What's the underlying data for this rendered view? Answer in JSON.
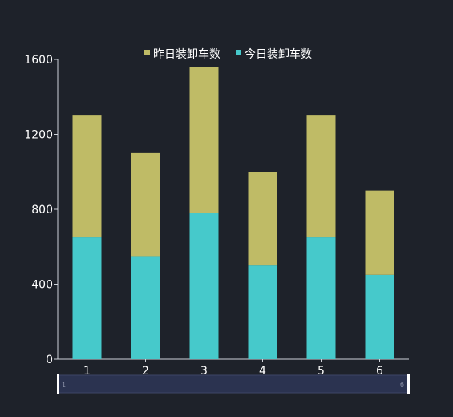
{
  "chart_data": {
    "type": "bar",
    "stacked": true,
    "categories": [
      "1",
      "2",
      "3",
      "4",
      "5",
      "6"
    ],
    "series": [
      {
        "name": "今日装卸车数",
        "color": "#46c9cb",
        "values": [
          650,
          550,
          780,
          500,
          650,
          450
        ]
      },
      {
        "name": "昨日装卸车数",
        "color": "#bfbb66",
        "values": [
          650,
          550,
          780,
          500,
          650,
          450
        ]
      }
    ],
    "ylim": [
      0,
      1600
    ],
    "yticks": [
      0,
      400,
      800,
      1200,
      1600
    ],
    "grid": false,
    "legend": {
      "position": "top-center",
      "entries": [
        {
          "name": "昨日装卸车数",
          "color": "#bfbb66"
        },
        {
          "name": "今日装卸车数",
          "color": "#46c9cb"
        }
      ]
    },
    "datazoom": {
      "start_label": "1",
      "end_label": "6",
      "fill_color": "#2b3350"
    },
    "axis_color": "#cfd3da",
    "text_color": "#ffffff",
    "background": "#1e222a"
  }
}
